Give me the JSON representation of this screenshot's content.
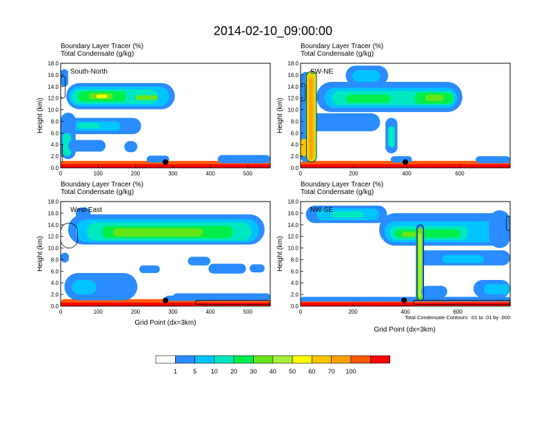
{
  "chart_data": {
    "type": "heatmap",
    "title": "2014-02-10_09:00:00",
    "fill_label": "Boundary Layer Tracer",
    "fill_units": "(%)",
    "contour_label": "Total Condensate",
    "contour_units": "(g/kg)",
    "ylabel": "Height (km)",
    "xlabel": "Grid Point (dx=3km)",
    "contour_note": "Total Condensate Contours: .01 to .01 by .000",
    "colorbar": {
      "levels": [
        "1",
        "5",
        "10",
        "20",
        "30",
        "40",
        "50",
        "60",
        "70",
        "100"
      ],
      "colors": [
        "#ffffff",
        "#2a8cff",
        "#00c4ff",
        "#00e8c0",
        "#00ee4a",
        "#66e619",
        "#a8f035",
        "#ffff00",
        "#ffc400",
        "#ffa000",
        "#ff5a00",
        "#ff0000"
      ]
    },
    "panels": [
      {
        "name": "South-North",
        "ylim": [
          0,
          18
        ],
        "yticks": [
          "0.0",
          "2.0",
          "4.0",
          "6.0",
          "8.0",
          "10.0",
          "12.0",
          "14.0",
          "16.0",
          "18.0"
        ],
        "xlim": [
          0,
          560
        ],
        "xticks": [
          0,
          100,
          200,
          300,
          400,
          500
        ],
        "marker": {
          "x": 280,
          "y": 1.0
        },
        "blobs": [
          {
            "x": [
              0,
              560
            ],
            "y": [
              0.0,
              1.2
            ],
            "level": 10
          },
          {
            "x": [
              0,
              560
            ],
            "y": [
              0.0,
              0.6
            ],
            "level": 11
          },
          {
            "x": [
              230,
              290
            ],
            "y": [
              0.9,
              2.1
            ],
            "level": 1
          },
          {
            "x": [
              15,
              305
            ],
            "y": [
              10.1,
              14.6
            ],
            "level": 1
          },
          {
            "x": [
              22,
              290
            ],
            "y": [
              10.6,
              14.0
            ],
            "level": 2
          },
          {
            "x": [
              30,
              260
            ],
            "y": [
              11.0,
              13.5
            ],
            "level": 3
          },
          {
            "x": [
              45,
              175
            ],
            "y": [
              11.4,
              13.2
            ],
            "level": 4
          },
          {
            "x": [
              75,
              140
            ],
            "y": [
              11.8,
              12.9
            ],
            "level": 5
          },
          {
            "x": [
              95,
              125
            ],
            "y": [
              12.0,
              12.6
            ],
            "level": 7
          },
          {
            "x": [
              200,
              260
            ],
            "y": [
              11.7,
              12.5
            ],
            "level": 5
          },
          {
            "x": [
              15,
              215
            ],
            "y": [
              5.8,
              8.6
            ],
            "level": 1
          },
          {
            "x": [
              30,
              160
            ],
            "y": [
              6.4,
              8.0
            ],
            "level": 2
          },
          {
            "x": [
              45,
              105
            ],
            "y": [
              6.8,
              7.7
            ],
            "level": 3
          },
          {
            "x": [
              0,
              40
            ],
            "y": [
              1.5,
              9.5
            ],
            "level": 1
          },
          {
            "x": [
              5,
              28
            ],
            "y": [
              2.0,
              6.0
            ],
            "level": 3
          },
          {
            "x": [
              0,
              20
            ],
            "y": [
              14.0,
              17.0
            ],
            "level": 1
          },
          {
            "x": [
              20,
              120
            ],
            "y": [
              2.8,
              4.8
            ],
            "level": 1
          },
          {
            "x": [
              170,
              205
            ],
            "y": [
              2.7,
              4.6
            ],
            "level": 1
          },
          {
            "x": [
              420,
              560
            ],
            "y": [
              0.8,
              2.2
            ],
            "level": 1
          }
        ],
        "outlines": [
          {
            "x": [
              0,
              12
            ],
            "y": [
              12.0,
              15.8
            ]
          },
          {
            "x": [
              0,
              5
            ],
            "y": [
              1.0,
              4.0
            ]
          }
        ]
      },
      {
        "name": "SW-NE",
        "ylim": [
          0,
          18
        ],
        "yticks": [
          "0.0",
          "2.0",
          "4.0",
          "6.0",
          "8.0",
          "10.0",
          "12.0",
          "14.0",
          "16.0",
          "18.0"
        ],
        "xlim": [
          0,
          790
        ],
        "xticks": [
          0,
          200,
          400,
          600
        ],
        "marker": {
          "x": 395,
          "y": 1.0
        },
        "blobs": [
          {
            "x": [
              0,
              790
            ],
            "y": [
              0.0,
              1.2
            ],
            "level": 10
          },
          {
            "x": [
              0,
              790
            ],
            "y": [
              0.0,
              0.6
            ],
            "level": 11
          },
          {
            "x": [
              340,
              420
            ],
            "y": [
              0.9,
              2.0
            ],
            "level": 1
          },
          {
            "x": [
              60,
              610
            ],
            "y": [
              9.6,
              14.8
            ],
            "level": 1
          },
          {
            "x": [
              90,
              590
            ],
            "y": [
              10.3,
              13.8
            ],
            "level": 2
          },
          {
            "x": [
              120,
              580
            ],
            "y": [
              10.8,
              13.2
            ],
            "level": 3
          },
          {
            "x": [
              430,
              575
            ],
            "y": [
              11.0,
              13.0
            ],
            "level": 4
          },
          {
            "x": [
              470,
              540
            ],
            "y": [
              11.5,
              12.6
            ],
            "level": 5
          },
          {
            "x": [
              170,
              340
            ],
            "y": [
              11.2,
              12.6
            ],
            "level": 4
          },
          {
            "x": [
              170,
              330
            ],
            "y": [
              14.2,
              17.6
            ],
            "level": 1
          },
          {
            "x": [
              195,
              300
            ],
            "y": [
              14.8,
              16.8
            ],
            "level": 2
          },
          {
            "x": [
              0,
              300
            ],
            "y": [
              6.3,
              9.4
            ],
            "level": 1
          },
          {
            "x": [
              320,
              365
            ],
            "y": [
              2.5,
              8.6
            ],
            "level": 1
          },
          {
            "x": [
              330,
              355
            ],
            "y": [
              3.5,
              7.2
            ],
            "level": 3
          },
          {
            "x": [
              0,
              40
            ],
            "y": [
              1.0,
              16.5
            ],
            "level": 1
          },
          {
            "x": [
              20,
              60
            ],
            "y": [
              1.0,
              16.6
            ],
            "level": 6
          },
          {
            "x": [
              28,
              52
            ],
            "y": [
              1.2,
              16.2
            ],
            "level": 8
          },
          {
            "x": [
              33,
              46
            ],
            "y": [
              1.5,
              15.5
            ],
            "level": 9
          },
          {
            "x": [
              0,
              25
            ],
            "y": [
              2.0,
              5.0
            ],
            "level": 8
          },
          {
            "x": [
              660,
              790
            ],
            "y": [
              0.8,
              2.0
            ],
            "level": 1
          }
        ],
        "outlines": [
          {
            "x": [
              22,
              60
            ],
            "y": [
              1.0,
              16.6
            ]
          },
          {
            "x": [
              0,
              18
            ],
            "y": [
              11.5,
              14.5
            ]
          }
        ]
      },
      {
        "name": "West-East",
        "ylim": [
          0,
          18
        ],
        "yticks": [
          "0.0",
          "2.0",
          "4.0",
          "6.0",
          "8.0",
          "10.0",
          "12.0",
          "14.0",
          "16.0",
          "18.0"
        ],
        "xlim": [
          0,
          560
        ],
        "xticks": [
          0,
          100,
          200,
          300,
          400,
          500
        ],
        "marker": {
          "x": 280,
          "y": 1.0
        },
        "blobs": [
          {
            "x": [
              0,
              560
            ],
            "y": [
              0.0,
              1.2
            ],
            "level": 10
          },
          {
            "x": [
              0,
              560
            ],
            "y": [
              0.0,
              0.6
            ],
            "level": 11
          },
          {
            "x": [
              280,
              330
            ],
            "y": [
              0.9,
              1.8
            ],
            "level": 1
          },
          {
            "x": [
              20,
              545
            ],
            "y": [
              10.6,
              15.8
            ],
            "level": 1
          },
          {
            "x": [
              40,
              530
            ],
            "y": [
              11.0,
              15.0
            ],
            "level": 2
          },
          {
            "x": [
              70,
              510
            ],
            "y": [
              11.3,
              14.4
            ],
            "level": 3
          },
          {
            "x": [
              110,
              460
            ],
            "y": [
              11.7,
              13.8
            ],
            "level": 4
          },
          {
            "x": [
              140,
              380
            ],
            "y": [
              12.0,
              13.4
            ],
            "level": 5
          },
          {
            "x": [
              40,
              80
            ],
            "y": [
              14.8,
              17.0
            ],
            "level": 1
          },
          {
            "x": [
              0,
              22
            ],
            "y": [
              7.5,
              9.2
            ],
            "level": 1
          },
          {
            "x": [
              210,
              265
            ],
            "y": [
              5.7,
              7.0
            ],
            "level": 1
          },
          {
            "x": [
              340,
              400
            ],
            "y": [
              7.0,
              8.5
            ],
            "level": 1
          },
          {
            "x": [
              395,
              495
            ],
            "y": [
              5.6,
              7.3
            ],
            "level": 1
          },
          {
            "x": [
              505,
              545
            ],
            "y": [
              5.8,
              7.2
            ],
            "level": 1
          },
          {
            "x": [
              10,
              205
            ],
            "y": [
              1.0,
              5.7
            ],
            "level": 1
          },
          {
            "x": [
              30,
              95
            ],
            "y": [
              2.0,
              4.5
            ],
            "level": 2
          },
          {
            "x": [
              300,
              560
            ],
            "y": [
              0.9,
              2.2
            ],
            "level": 1
          }
        ],
        "outlines": [
          {
            "x": [
              0,
              45
            ],
            "y": [
              10.0,
              14.3
            ]
          },
          {
            "x": [
              360,
              560
            ],
            "y": [
              0.3,
              1.0
            ]
          }
        ]
      },
      {
        "name": "NW-SE",
        "ylim": [
          0,
          18
        ],
        "yticks": [
          "0.0",
          "2.0",
          "4.0",
          "6.0",
          "8.0",
          "10.0",
          "12.0",
          "14.0",
          "16.0",
          "18.0"
        ],
        "xlim": [
          0,
          800
        ],
        "xticks": [
          0,
          200,
          400,
          600
        ],
        "marker": {
          "x": 395,
          "y": 1.0
        },
        "blobs": [
          {
            "x": [
              0,
              800
            ],
            "y": [
              0.0,
              1.2
            ],
            "level": 10
          },
          {
            "x": [
              0,
              800
            ],
            "y": [
              0.0,
              0.6
            ],
            "level": 11
          },
          {
            "x": [
              0,
              800
            ],
            "y": [
              0.8,
              1.6
            ],
            "level": 1
          },
          {
            "x": [
              20,
              330
            ],
            "y": [
              14.3,
              17.3
            ],
            "level": 1
          },
          {
            "x": [
              60,
              300
            ],
            "y": [
              14.8,
              16.8
            ],
            "level": 2
          },
          {
            "x": [
              120,
              240
            ],
            "y": [
              15.2,
              16.3
            ],
            "level": 3
          },
          {
            "x": [
              300,
              800
            ],
            "y": [
              10.4,
              16.0
            ],
            "level": 1
          },
          {
            "x": [
              320,
              760
            ],
            "y": [
              11.0,
              14.6
            ],
            "level": 2
          },
          {
            "x": [
              340,
              640
            ],
            "y": [
              11.4,
              13.8
            ],
            "level": 3
          },
          {
            "x": [
              360,
              610
            ],
            "y": [
              11.8,
              13.2
            ],
            "level": 4
          },
          {
            "x": [
              385,
              445
            ],
            "y": [
              11.9,
              12.8
            ],
            "level": 5
          },
          {
            "x": [
              720,
              800
            ],
            "y": [
              10.0,
              16.5
            ],
            "level": 1
          },
          {
            "x": [
              450,
              800
            ],
            "y": [
              7.0,
              9.6
            ],
            "level": 1
          },
          {
            "x": [
              540,
              700
            ],
            "y": [
              7.4,
              8.8
            ],
            "level": 2
          },
          {
            "x": [
              440,
              470
            ],
            "y": [
              1.0,
              14.0
            ],
            "level": 1
          },
          {
            "x": [
              445,
              465
            ],
            "y": [
              1.0,
              13.5
            ],
            "level": 5
          },
          {
            "x": [
              450,
              462
            ],
            "y": [
              1.5,
              12.5
            ],
            "level": 6
          },
          {
            "x": [
              660,
              800
            ],
            "y": [
              1.5,
              4.5
            ],
            "level": 1
          },
          {
            "x": [
              700,
              800
            ],
            "y": [
              2.0,
              3.8
            ],
            "level": 2
          },
          {
            "x": [
              460,
              560
            ],
            "y": [
              1.5,
              3.5
            ],
            "level": 1
          }
        ],
        "outlines": [
          {
            "x": [
              445,
              470
            ],
            "y": [
              1.0,
              14.0
            ]
          },
          {
            "x": [
              430,
              800
            ],
            "y": [
              0.3,
              1.0
            ]
          },
          {
            "x": [
              785,
              800
            ],
            "y": [
              13.0,
              15.5
            ]
          }
        ]
      }
    ]
  }
}
